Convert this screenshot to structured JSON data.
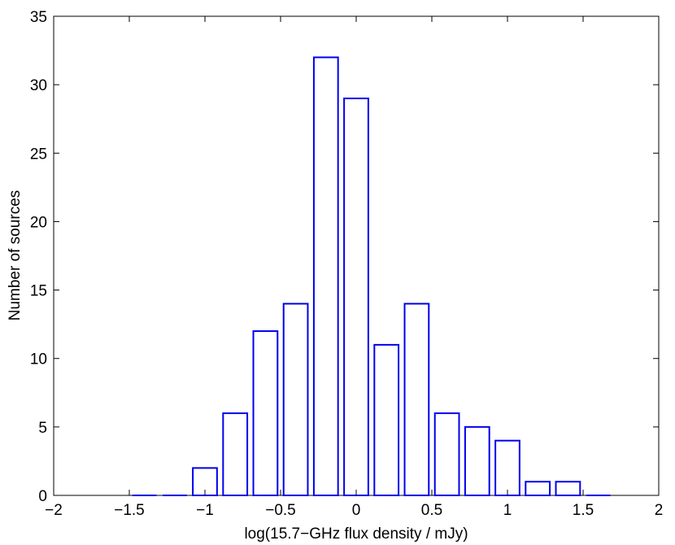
{
  "chart_data": {
    "type": "bar",
    "xlabel": "log(15.7−GHz flux density / mJy)",
    "ylabel": "Number of sources",
    "xlim": [
      -2,
      2
    ],
    "ylim": [
      0,
      35
    ],
    "xticks": [
      -2,
      -1.5,
      -1,
      -0.5,
      0,
      0.5,
      1,
      1.5,
      2
    ],
    "xtick_labels": [
      "−2",
      "−1.5",
      "−1",
      "−0.5",
      "0",
      "0.5",
      "1",
      "1.5",
      "2"
    ],
    "yticks": [
      0,
      5,
      10,
      15,
      20,
      25,
      30,
      35
    ],
    "ytick_labels": [
      "0",
      "5",
      "10",
      "15",
      "20",
      "25",
      "30",
      "35"
    ],
    "bin_centers": [
      -1.4,
      -1.2,
      -1.0,
      -0.8,
      -0.6,
      -0.4,
      -0.2,
      0.0,
      0.2,
      0.4,
      0.6,
      0.8,
      1.0,
      1.2,
      1.4,
      1.6
    ],
    "bar_width": 0.16,
    "values": [
      0,
      0,
      2,
      6,
      12,
      14,
      32,
      29,
      11,
      14,
      6,
      5,
      4,
      1,
      1,
      0
    ],
    "bar_color": "#0000ee",
    "grid": false,
    "legend": "none"
  }
}
